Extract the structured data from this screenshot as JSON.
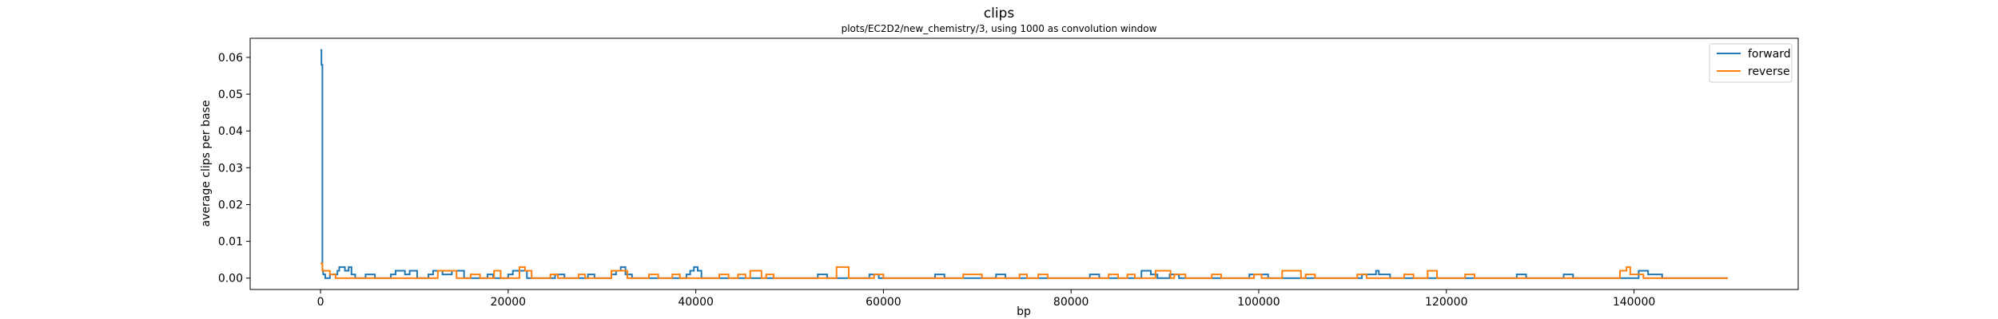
{
  "chart_data": {
    "type": "line",
    "title": "clips",
    "subtitle": "plots/EC2D2/new_chemistry/3, using 1000 as convolution window",
    "xlabel": "bp",
    "ylabel": "average clips per base",
    "xlim": [
      -7500,
      157500
    ],
    "ylim": [
      -0.0031,
      0.0652
    ],
    "xticks": [
      0,
      20000,
      40000,
      60000,
      80000,
      100000,
      120000,
      140000
    ],
    "yticks": [
      "0.00",
      "0.01",
      "0.02",
      "0.03",
      "0.04",
      "0.05",
      "0.06"
    ],
    "ytick_values": [
      0,
      0.01,
      0.02,
      0.03,
      0.04,
      0.05,
      0.06
    ],
    "grid": false,
    "legend": {
      "placement": "top-right",
      "entries": [
        "forward",
        "reverse"
      ]
    },
    "series": [
      {
        "name": "forward",
        "color": "#1f77b4",
        "points": [
          [
            0,
            0.062
          ],
          [
            100,
            0.062
          ],
          [
            100,
            0.058
          ],
          [
            200,
            0.058
          ],
          [
            200,
            0.003
          ],
          [
            300,
            0.001
          ],
          [
            500,
            0.001
          ],
          [
            500,
            0
          ],
          [
            1000,
            0
          ],
          [
            1000,
            0.001
          ],
          [
            1800,
            0.001
          ],
          [
            1800,
            0.002
          ],
          [
            2000,
            0.002
          ],
          [
            2000,
            0.003
          ],
          [
            2600,
            0.003
          ],
          [
            2600,
            0.002
          ],
          [
            3000,
            0.002
          ],
          [
            3000,
            0.003
          ],
          [
            3300,
            0.003
          ],
          [
            3300,
            0.001
          ],
          [
            3700,
            0.001
          ],
          [
            3700,
            0
          ],
          [
            4800,
            0
          ],
          [
            4800,
            0.001
          ],
          [
            5800,
            0.001
          ],
          [
            5800,
            0
          ],
          [
            7500,
            0
          ],
          [
            7500,
            0.001
          ],
          [
            8000,
            0.001
          ],
          [
            8000,
            0.002
          ],
          [
            9000,
            0.002
          ],
          [
            9000,
            0.001
          ],
          [
            9500,
            0.001
          ],
          [
            9500,
            0.002
          ],
          [
            10300,
            0.002
          ],
          [
            10300,
            0
          ],
          [
            11500,
            0
          ],
          [
            11500,
            0.001
          ],
          [
            12000,
            0.001
          ],
          [
            12000,
            0.002
          ],
          [
            13000,
            0.002
          ],
          [
            13000,
            0.001
          ],
          [
            14000,
            0.001
          ],
          [
            14000,
            0.002
          ],
          [
            15300,
            0.002
          ],
          [
            15300,
            0
          ],
          [
            17800,
            0
          ],
          [
            17800,
            0.001
          ],
          [
            18400,
            0.001
          ],
          [
            18400,
            0
          ],
          [
            20000,
            0
          ],
          [
            20000,
            0.001
          ],
          [
            20500,
            0.001
          ],
          [
            20500,
            0.002
          ],
          [
            22000,
            0.002
          ],
          [
            22000,
            0
          ],
          [
            25000,
            0
          ],
          [
            25000,
            0.001
          ],
          [
            26000,
            0.001
          ],
          [
            26000,
            0
          ],
          [
            28500,
            0
          ],
          [
            28500,
            0.001
          ],
          [
            29200,
            0.001
          ],
          [
            29200,
            0
          ],
          [
            31000,
            0
          ],
          [
            31000,
            0.001
          ],
          [
            31500,
            0.001
          ],
          [
            31500,
            0.002
          ],
          [
            32000,
            0.002
          ],
          [
            32000,
            0.003
          ],
          [
            32500,
            0.003
          ],
          [
            32500,
            0.001
          ],
          [
            33200,
            0.001
          ],
          [
            33200,
            0
          ],
          [
            39000,
            0
          ],
          [
            39000,
            0.001
          ],
          [
            39400,
            0.001
          ],
          [
            39400,
            0.002
          ],
          [
            39800,
            0.002
          ],
          [
            39800,
            0.003
          ],
          [
            40200,
            0.003
          ],
          [
            40200,
            0.002
          ],
          [
            40600,
            0.002
          ],
          [
            40600,
            0
          ],
          [
            53000,
            0
          ],
          [
            53000,
            0.001
          ],
          [
            54000,
            0.001
          ],
          [
            54000,
            0
          ],
          [
            58500,
            0
          ],
          [
            58500,
            0.001
          ],
          [
            59500,
            0.001
          ],
          [
            59500,
            0
          ],
          [
            65500,
            0
          ],
          [
            65500,
            0.001
          ],
          [
            66500,
            0.001
          ],
          [
            66500,
            0
          ],
          [
            72000,
            0
          ],
          [
            72000,
            0.001
          ],
          [
            73000,
            0.001
          ],
          [
            73000,
            0
          ],
          [
            82000,
            0
          ],
          [
            82000,
            0.001
          ],
          [
            83000,
            0.001
          ],
          [
            83000,
            0
          ],
          [
            87500,
            0
          ],
          [
            87500,
            0.002
          ],
          [
            88500,
            0.002
          ],
          [
            88500,
            0.001
          ],
          [
            89200,
            0.001
          ],
          [
            89200,
            0
          ],
          [
            90500,
            0
          ],
          [
            90500,
            0.001
          ],
          [
            91500,
            0.001
          ],
          [
            91500,
            0
          ],
          [
            99000,
            0
          ],
          [
            99000,
            0.001
          ],
          [
            101000,
            0.001
          ],
          [
            101000,
            0
          ],
          [
            111000,
            0
          ],
          [
            111000,
            0.001
          ],
          [
            112500,
            0.001
          ],
          [
            112500,
            0.002
          ],
          [
            112800,
            0.002
          ],
          [
            112800,
            0.001
          ],
          [
            114000,
            0.001
          ],
          [
            114000,
            0
          ],
          [
            127500,
            0
          ],
          [
            127500,
            0.001
          ],
          [
            128500,
            0.001
          ],
          [
            128500,
            0
          ],
          [
            132500,
            0
          ],
          [
            132500,
            0.001
          ],
          [
            133500,
            0.001
          ],
          [
            133500,
            0
          ],
          [
            140500,
            0
          ],
          [
            140500,
            0.002
          ],
          [
            141500,
            0.002
          ],
          [
            141500,
            0.001
          ],
          [
            143000,
            0.001
          ],
          [
            143000,
            0
          ],
          [
            150000,
            0
          ]
        ]
      },
      {
        "name": "reverse",
        "color": "#ff7f0e",
        "points": [
          [
            0,
            0.004
          ],
          [
            200,
            0.004
          ],
          [
            200,
            0.002
          ],
          [
            1000,
            0.002
          ],
          [
            1000,
            0.001
          ],
          [
            1600,
            0.001
          ],
          [
            1600,
            0
          ],
          [
            12500,
            0
          ],
          [
            12500,
            0.002
          ],
          [
            14500,
            0.002
          ],
          [
            14500,
            0
          ],
          [
            16000,
            0
          ],
          [
            16000,
            0.001
          ],
          [
            17000,
            0.001
          ],
          [
            17000,
            0
          ],
          [
            18500,
            0
          ],
          [
            18500,
            0.002
          ],
          [
            19200,
            0.002
          ],
          [
            19200,
            0
          ],
          [
            21200,
            0
          ],
          [
            21200,
            0.003
          ],
          [
            21800,
            0.003
          ],
          [
            21800,
            0.002
          ],
          [
            22500,
            0.002
          ],
          [
            22500,
            0
          ],
          [
            24500,
            0
          ],
          [
            24500,
            0.001
          ],
          [
            25300,
            0.001
          ],
          [
            25300,
            0
          ],
          [
            27500,
            0
          ],
          [
            27500,
            0.001
          ],
          [
            28200,
            0.001
          ],
          [
            28200,
            0
          ],
          [
            31000,
            0
          ],
          [
            31000,
            0.002
          ],
          [
            32700,
            0.002
          ],
          [
            32700,
            0
          ],
          [
            35000,
            0
          ],
          [
            35000,
            0.001
          ],
          [
            36000,
            0.001
          ],
          [
            36000,
            0
          ],
          [
            37500,
            0
          ],
          [
            37500,
            0.001
          ],
          [
            38300,
            0.001
          ],
          [
            38300,
            0
          ],
          [
            42500,
            0
          ],
          [
            42500,
            0.001
          ],
          [
            43500,
            0.001
          ],
          [
            43500,
            0
          ],
          [
            44500,
            0
          ],
          [
            44500,
            0.001
          ],
          [
            45300,
            0.001
          ],
          [
            45300,
            0
          ],
          [
            45800,
            0
          ],
          [
            45800,
            0.002
          ],
          [
            47000,
            0.002
          ],
          [
            47000,
            0
          ],
          [
            47500,
            0
          ],
          [
            47500,
            0.001
          ],
          [
            48300,
            0.001
          ],
          [
            48300,
            0
          ],
          [
            55000,
            0
          ],
          [
            55000,
            0.003
          ],
          [
            56300,
            0.003
          ],
          [
            56300,
            0
          ],
          [
            59000,
            0
          ],
          [
            59000,
            0.001
          ],
          [
            60000,
            0.001
          ],
          [
            60000,
            0
          ],
          [
            68500,
            0
          ],
          [
            68500,
            0.001
          ],
          [
            70500,
            0.001
          ],
          [
            70500,
            0
          ],
          [
            74500,
            0
          ],
          [
            74500,
            0.001
          ],
          [
            75300,
            0.001
          ],
          [
            75300,
            0
          ],
          [
            76500,
            0
          ],
          [
            76500,
            0.001
          ],
          [
            77500,
            0.001
          ],
          [
            77500,
            0
          ],
          [
            84000,
            0
          ],
          [
            84000,
            0.001
          ],
          [
            85000,
            0.001
          ],
          [
            85000,
            0
          ],
          [
            86000,
            0
          ],
          [
            86000,
            0.001
          ],
          [
            86800,
            0.001
          ],
          [
            86800,
            0
          ],
          [
            89000,
            0
          ],
          [
            89000,
            0.002
          ],
          [
            90600,
            0.002
          ],
          [
            90600,
            0
          ],
          [
            91000,
            0
          ],
          [
            91000,
            0.001
          ],
          [
            92200,
            0.001
          ],
          [
            92200,
            0
          ],
          [
            95000,
            0
          ],
          [
            95000,
            0.001
          ],
          [
            96000,
            0.001
          ],
          [
            96000,
            0
          ],
          [
            99500,
            0
          ],
          [
            99500,
            0.001
          ],
          [
            100300,
            0.001
          ],
          [
            100300,
            0
          ],
          [
            102500,
            0
          ],
          [
            102500,
            0.002
          ],
          [
            104500,
            0.002
          ],
          [
            104500,
            0
          ],
          [
            105000,
            0
          ],
          [
            105000,
            0.001
          ],
          [
            106000,
            0.001
          ],
          [
            106000,
            0
          ],
          [
            110500,
            0
          ],
          [
            110500,
            0.001
          ],
          [
            111500,
            0.001
          ],
          [
            111500,
            0
          ],
          [
            115500,
            0
          ],
          [
            115500,
            0.001
          ],
          [
            116500,
            0.001
          ],
          [
            116500,
            0
          ],
          [
            118000,
            0
          ],
          [
            118000,
            0.002
          ],
          [
            119000,
            0.002
          ],
          [
            119000,
            0
          ],
          [
            122000,
            0
          ],
          [
            122000,
            0.001
          ],
          [
            123000,
            0.001
          ],
          [
            123000,
            0
          ],
          [
            138500,
            0
          ],
          [
            138500,
            0.002
          ],
          [
            139200,
            0.002
          ],
          [
            139200,
            0.003
          ],
          [
            139600,
            0.003
          ],
          [
            139600,
            0.001
          ],
          [
            141000,
            0.001
          ],
          [
            141000,
            0
          ],
          [
            150000,
            0
          ]
        ]
      }
    ]
  }
}
